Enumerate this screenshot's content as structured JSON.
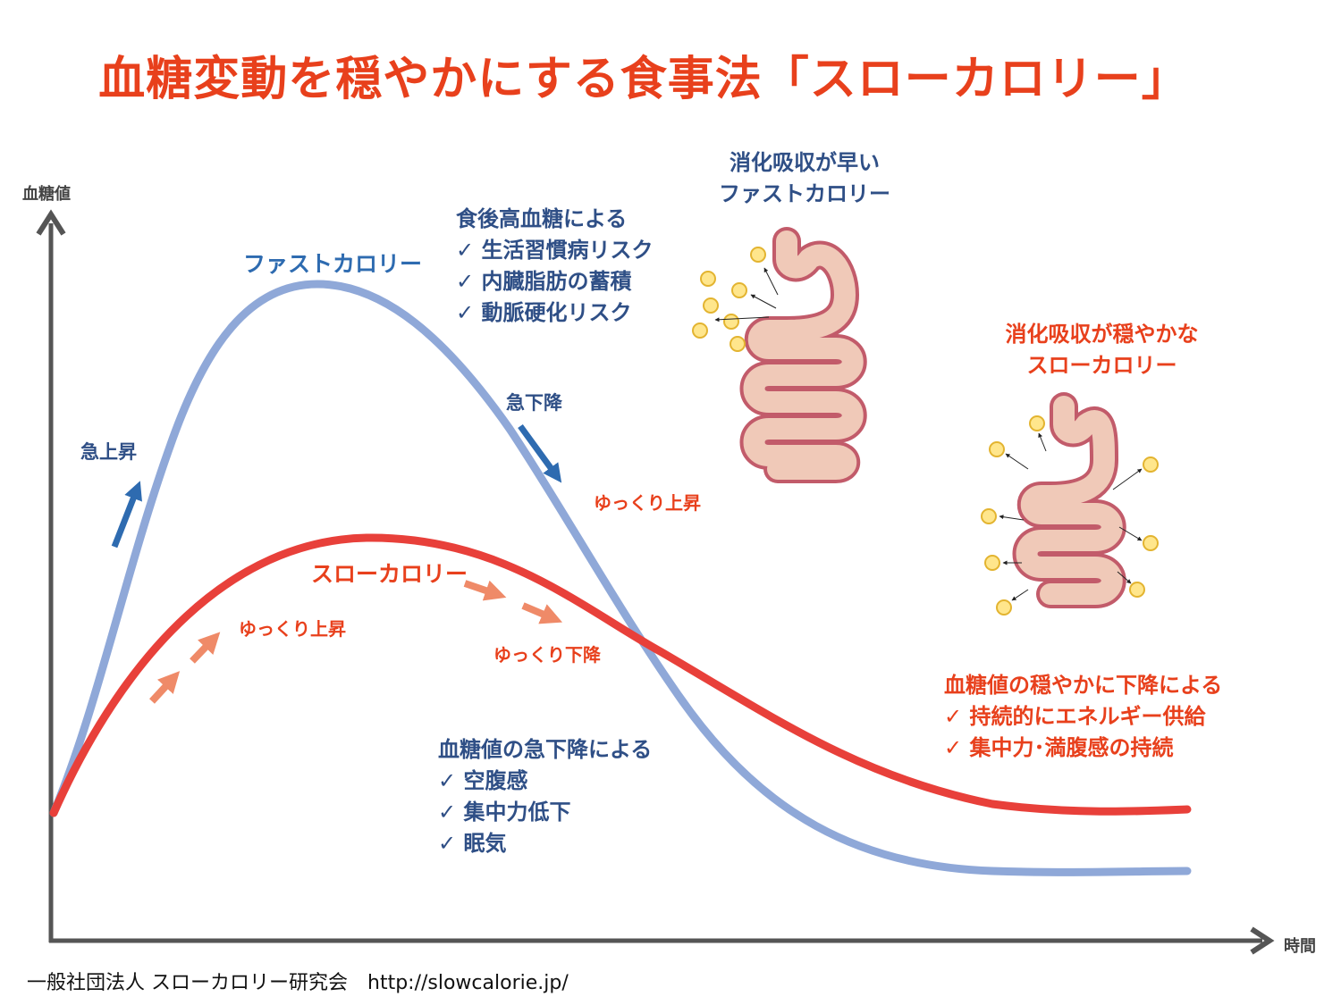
{
  "title": "血糖変動を穏やかにする食事法「スローカロリー」",
  "axes": {
    "y_label": "血糖値",
    "x_label": "時間"
  },
  "colors": {
    "fast": "#8fa8d8",
    "slow": "#e8403a",
    "title": "#e8401c",
    "navy": "#2f4f86",
    "orange_arrow": "#ef8a68",
    "blue_arrow": "#2e6bb0"
  },
  "curves": {
    "fast": {
      "label": "ファストカロリー",
      "rise": "急上昇",
      "fall": "急下降"
    },
    "slow": {
      "label": "スローカロリー",
      "rise": "ゆっくり上昇",
      "fall": "ゆっくり下降"
    },
    "extra_slow_rise": "ゆっくり上昇"
  },
  "fast_effects": {
    "heading": "食後高血糖による",
    "items": [
      "✓ 生活習慣病リスク",
      "✓ 内臓脂肪の蓄積",
      "✓ 動脈硬化リスク"
    ]
  },
  "drop_effects": {
    "heading": "血糖値の急下降による",
    "items": [
      "✓ 空腹感",
      "✓ 集中力低下",
      "✓ 眠気"
    ]
  },
  "slow_effects": {
    "heading": "血糖値の穏やかに下降による",
    "items": [
      "✓ 持続的にエネルギー供給",
      "✓ 集中力･満腹感の持続"
    ]
  },
  "fast_digest": {
    "line1": "消化吸収が早い",
    "line2": "ファストカロリー"
  },
  "slow_digest": {
    "line1": "消化吸収が穏やかな",
    "line2": "スローカロリー"
  },
  "footer": "一般社団法人 スローカロリー研究会　http://slowcalorie.jp/"
}
